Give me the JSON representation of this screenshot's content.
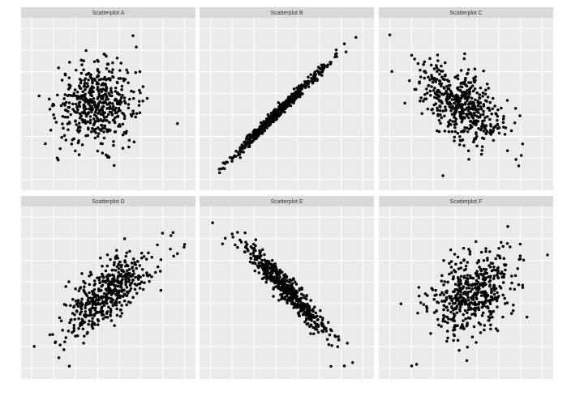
{
  "colors": {
    "panel_background": "#ebebeb",
    "strip_background": "#d9d9d9",
    "grid_major": "#ffffff",
    "strip_text": "#333333",
    "point": "#000000"
  },
  "chart_data": [
    {
      "type": "scatter",
      "title": "Scatterplot A",
      "correlation": "none",
      "grid": true,
      "xlim": [
        0,
        10
      ],
      "ylim": [
        0,
        10
      ],
      "n_points": 500,
      "center": [
        4.3,
        5.0
      ],
      "spread": [
        1.2,
        1.2
      ],
      "r": 0.0,
      "outliers": [
        [
          0.8,
          5.5
        ],
        [
          9.2,
          3.8
        ],
        [
          6.5,
          9.2
        ],
        [
          6.7,
          8.5
        ]
      ]
    },
    {
      "type": "scatter",
      "title": "Scatterplot B",
      "correlation": "strong positive",
      "grid": true,
      "xlim": [
        0,
        10
      ],
      "ylim": [
        0,
        10
      ],
      "n_points": 500,
      "center": [
        4.5,
        4.5
      ],
      "spread": [
        1.45,
        1.45
      ],
      "r": 0.992,
      "outliers": [
        [
          0.9,
          1.0
        ],
        [
          8.5,
          8.7
        ],
        [
          9.2,
          9.1
        ],
        [
          8.6,
          8.2
        ]
      ]
    },
    {
      "type": "scatter",
      "title": "Scatterplot C",
      "correlation": "weak negative",
      "grid": true,
      "xlim": [
        0,
        10
      ],
      "ylim": [
        0,
        10
      ],
      "n_points": 500,
      "center": [
        4.6,
        5.0
      ],
      "spread": [
        1.3,
        1.3
      ],
      "r": -0.55,
      "outliers": [
        [
          0.5,
          7.0
        ],
        [
          1.7,
          8.0
        ],
        [
          3.6,
          0.6
        ],
        [
          8.2,
          1.2
        ]
      ]
    },
    {
      "type": "scatter",
      "title": "Scatterplot D",
      "correlation": "moderate positive",
      "grid": true,
      "xlim": [
        0,
        10
      ],
      "ylim": [
        0,
        10
      ],
      "n_points": 500,
      "center": [
        5.0,
        5.0
      ],
      "spread": [
        1.3,
        1.3
      ],
      "r": 0.72,
      "outliers": [
        [
          0.5,
          1.7
        ],
        [
          2.0,
          1.0
        ],
        [
          9.2,
          7.4
        ],
        [
          9.6,
          7.8
        ]
      ]
    },
    {
      "type": "scatter",
      "title": "Scatterplot E",
      "correlation": "strong negative",
      "grid": true,
      "xlim": [
        0,
        10
      ],
      "ylim": [
        0,
        10
      ],
      "n_points": 500,
      "center": [
        5.0,
        5.2
      ],
      "spread": [
        1.4,
        1.5
      ],
      "r": -0.955,
      "outliers": [
        [
          0.5,
          9.3
        ],
        [
          1.1,
          8.0
        ],
        [
          8.5,
          0.5
        ],
        [
          9.0,
          0.7
        ]
      ]
    },
    {
      "type": "scatter",
      "title": "Scatterplot F",
      "correlation": "weak positive",
      "grid": true,
      "xlim": [
        0,
        10
      ],
      "ylim": [
        0,
        10
      ],
      "n_points": 500,
      "center": [
        5.3,
        5.0
      ],
      "spread": [
        1.3,
        1.25
      ],
      "r": 0.35,
      "outliers": [
        [
          1.7,
          0.5
        ],
        [
          2.0,
          0.6
        ],
        [
          8.7,
          3.5
        ],
        [
          8.5,
          7.0
        ]
      ]
    }
  ]
}
